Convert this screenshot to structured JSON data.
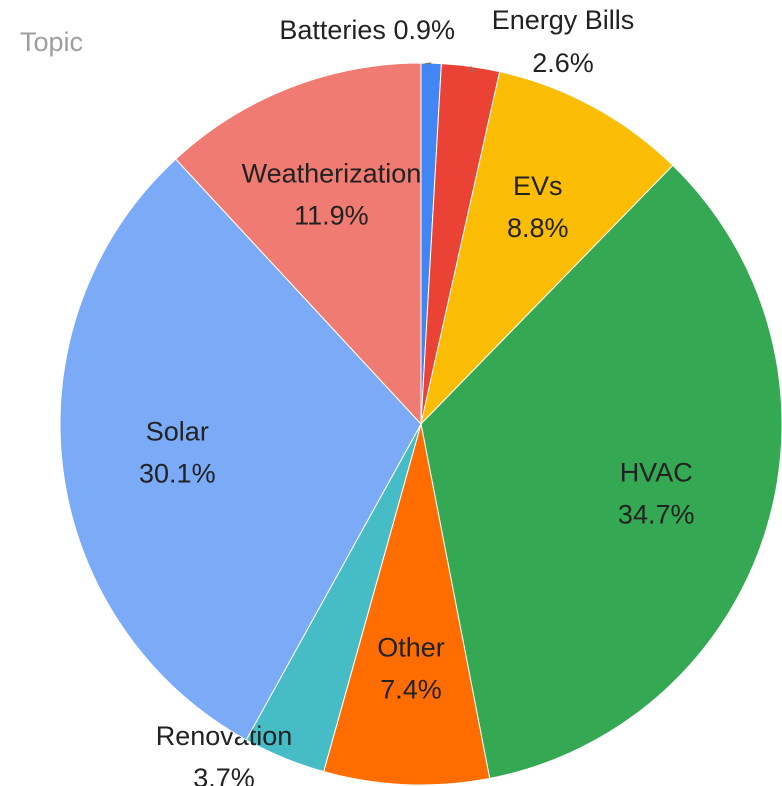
{
  "chart_data": {
    "type": "pie",
    "title": "Topic",
    "categories": [
      "Batteries",
      "Energy Bills",
      "EVs",
      "HVAC",
      "Other",
      "Renovation",
      "Solar",
      "Weatherization"
    ],
    "values": [
      0.9,
      2.6,
      8.8,
      34.7,
      7.4,
      3.7,
      30.1,
      11.9
    ],
    "value_labels": [
      "0.9%",
      "2.6%",
      "8.8%",
      "34.7%",
      "7.4%",
      "3.7%",
      "30.1%",
      "11.9%"
    ],
    "colors": [
      "#4285f4",
      "#ea4335",
      "#fbbc04",
      "#34a853",
      "#ff6d01",
      "#46bdc6",
      "#7baaf7",
      "#f07b72"
    ]
  }
}
